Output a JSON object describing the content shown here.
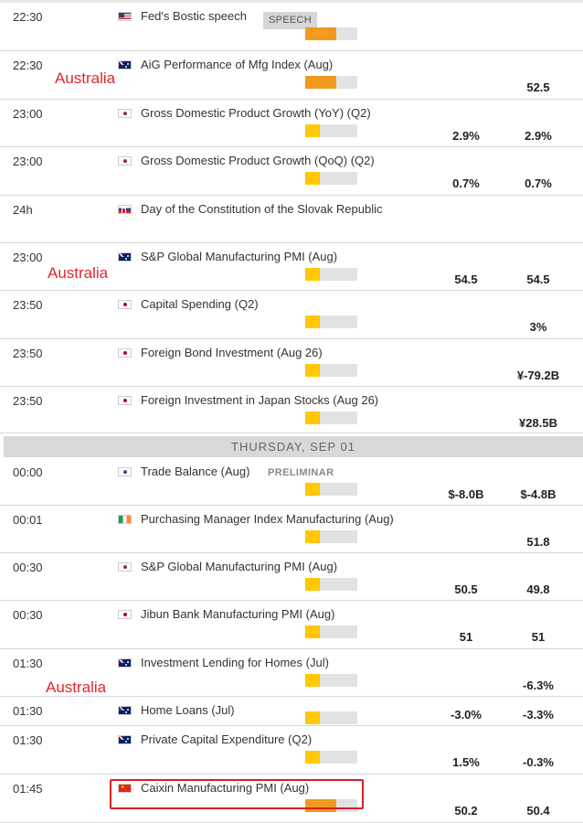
{
  "colors": {
    "importance_high": "#f29a1c",
    "importance_low": "#ffc800",
    "track": "#e2e2e2",
    "annotation": "#e0262d"
  },
  "day_header": "THURSDAY, SEP 01",
  "annotation_label": "Australia",
  "rows": [
    {
      "time": "22:30",
      "flag": "us",
      "flag_icon": "us-flag-icon",
      "event": "Fed's Bostic speech",
      "badge": "SPEECH",
      "importance": "high",
      "forecast": "",
      "previous": ""
    },
    {
      "time": "22:30",
      "flag": "au",
      "flag_icon": "australia-flag-icon",
      "event": "AiG Performance of Mfg Index (Aug)",
      "importance": "high",
      "forecast": "",
      "previous": "52.5"
    },
    {
      "time": "23:00",
      "flag": "kr",
      "flag_icon": "south-korea-flag-icon",
      "event": "Gross Domestic Product Growth (YoY) (Q2)",
      "importance": "low",
      "forecast": "2.9%",
      "previous": "2.9%"
    },
    {
      "time": "23:00",
      "flag": "kr",
      "flag_icon": "south-korea-flag-icon",
      "event": "Gross Domestic Product Growth (QoQ) (Q2)",
      "importance": "low",
      "forecast": "0.7%",
      "previous": "0.7%"
    },
    {
      "time": "24h",
      "flag": "sk",
      "flag_icon": "slovakia-flag-icon",
      "event": "Day of the Constitution of the Slovak Republic",
      "importance": "none",
      "forecast": "",
      "previous": ""
    },
    {
      "time": "23:00",
      "flag": "au",
      "flag_icon": "australia-flag-icon",
      "event": "S&P Global Manufacturing PMI (Aug)",
      "importance": "low",
      "forecast": "54.5",
      "previous": "54.5"
    },
    {
      "time": "23:50",
      "flag": "jp",
      "flag_icon": "japan-flag-icon",
      "event": "Capital Spending (Q2)",
      "importance": "low",
      "forecast": "",
      "previous": "3%"
    },
    {
      "time": "23:50",
      "flag": "jp",
      "flag_icon": "japan-flag-icon",
      "event": "Foreign Bond Investment (Aug 26)",
      "importance": "low",
      "forecast": "",
      "previous": "¥-79.2B"
    },
    {
      "time": "23:50",
      "flag": "jp",
      "flag_icon": "japan-flag-icon",
      "event": "Foreign Investment in Japan Stocks (Aug 26)",
      "importance": "low",
      "forecast": "",
      "previous": "¥28.5B"
    },
    {
      "time": "00:00",
      "flag": "kr",
      "flag_icon": "south-korea-flag-icon",
      "event": "Trade Balance (Aug)",
      "tag": "PRELIMINAR",
      "importance": "low",
      "forecast": "$-8.0B",
      "previous": "$-4.8B"
    },
    {
      "time": "00:01",
      "flag": "ie",
      "flag_icon": "ireland-flag-icon",
      "event": "Purchasing Manager Index Manufacturing (Aug)",
      "importance": "low",
      "forecast": "",
      "previous": "51.8"
    },
    {
      "time": "00:30",
      "flag": "kr",
      "flag_icon": "south-korea-flag-icon",
      "event": "S&P Global Manufacturing PMI (Aug)",
      "importance": "low",
      "forecast": "50.5",
      "previous": "49.8"
    },
    {
      "time": "00:30",
      "flag": "jp",
      "flag_icon": "japan-flag-icon",
      "event": "Jibun Bank Manufacturing PMI (Aug)",
      "importance": "low",
      "forecast": "51",
      "previous": "51"
    },
    {
      "time": "01:30",
      "flag": "au",
      "flag_icon": "australia-flag-icon",
      "event": "Investment Lending for Homes (Jul)",
      "importance": "low",
      "forecast": "",
      "previous": "-6.3%"
    },
    {
      "time": "01:30",
      "flag": "au",
      "flag_icon": "australia-flag-icon",
      "event": "Home Loans (Jul)",
      "importance": "low",
      "forecast": "-3.0%",
      "previous": "-3.3%"
    },
    {
      "time": "01:30",
      "flag": "au",
      "flag_icon": "australia-flag-icon",
      "event": "Private Capital Expenditure (Q2)",
      "importance": "low",
      "forecast": "1.5%",
      "previous": "-0.3%"
    },
    {
      "time": "01:45",
      "flag": "cn",
      "flag_icon": "china-flag-icon",
      "event": "Caixin Manufacturing PMI (Aug)",
      "importance": "high",
      "forecast": "50.2",
      "previous": "50.4"
    }
  ]
}
